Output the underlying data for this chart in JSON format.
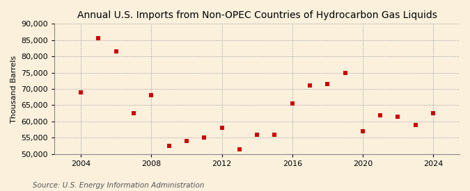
{
  "title": "Annual U.S. Imports from Non-OPEC Countries of Hydrocarbon Gas Liquids",
  "ylabel": "Thousand Barrels",
  "source": "Source: U.S. Energy Information Administration",
  "years": [
    2004,
    2005,
    2006,
    2007,
    2008,
    2009,
    2010,
    2011,
    2012,
    2013,
    2014,
    2015,
    2016,
    2017,
    2018,
    2019,
    2020,
    2021,
    2022,
    2023,
    2024
  ],
  "values": [
    69000,
    85500,
    81500,
    62500,
    68000,
    52500,
    54000,
    55000,
    58000,
    51500,
    56000,
    56000,
    65500,
    71000,
    71500,
    75000,
    57000,
    62000,
    61500,
    59000,
    62500
  ],
  "ylim": [
    50000,
    90000
  ],
  "yticks": [
    50000,
    55000,
    60000,
    65000,
    70000,
    75000,
    80000,
    85000,
    90000
  ],
  "xticks": [
    2004,
    2008,
    2012,
    2016,
    2020,
    2024
  ],
  "xlim": [
    2002.5,
    2025.5
  ],
  "marker_color": "#CC0000",
  "marker_size": 4,
  "grid_color": "#AAAAAA",
  "bg_color": "#FAF0DC",
  "plot_bg_color": "#FAF0DC",
  "title_fontsize": 10,
  "label_fontsize": 8,
  "tick_fontsize": 8,
  "source_fontsize": 7.5,
  "title_fontweight": "normal"
}
